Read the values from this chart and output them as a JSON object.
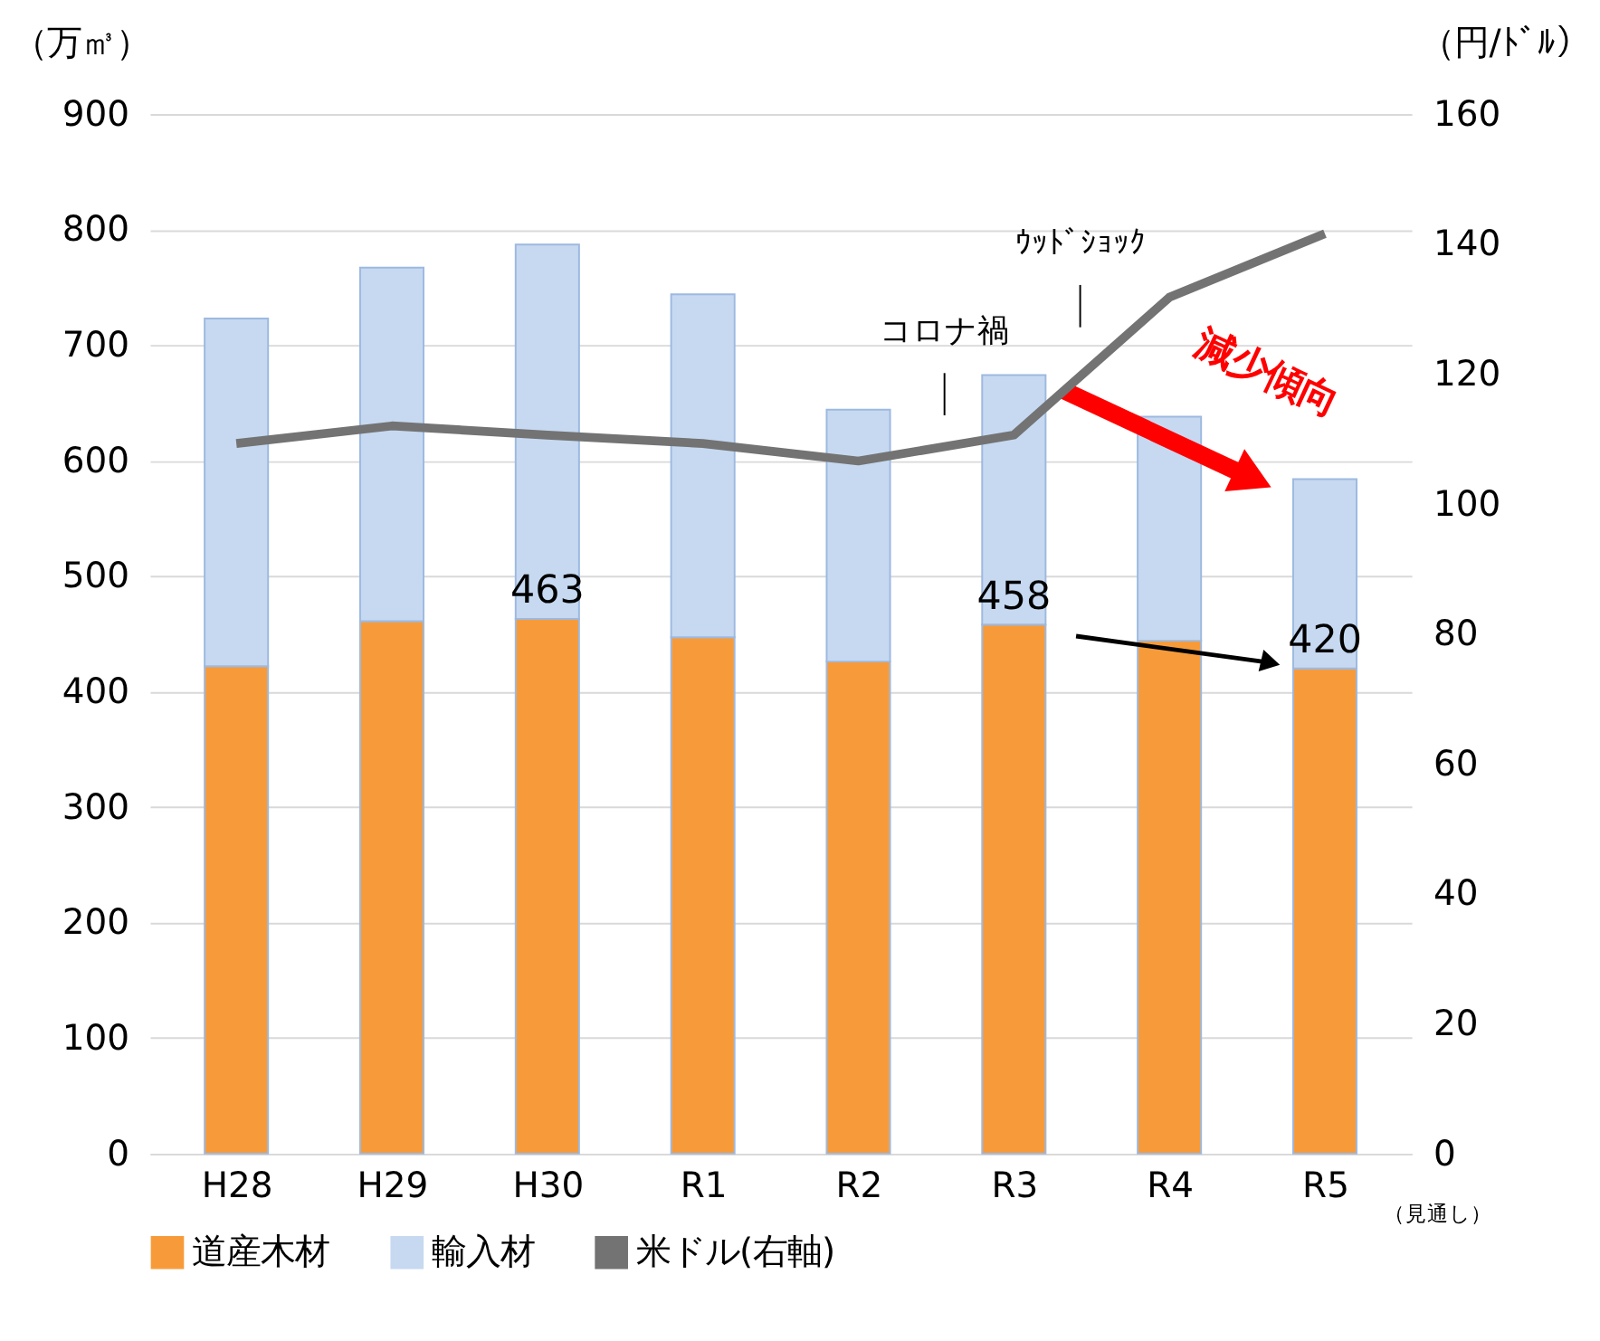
{
  "chart_data": {
    "type": "bar",
    "stacked": true,
    "categories": [
      "H28",
      "H29",
      "H30",
      "R1",
      "R2",
      "R3",
      "R4",
      "R5"
    ],
    "series": [
      {
        "name": "道産木材",
        "color": "#f79b3a",
        "values": [
          422,
          461,
          463,
          447,
          426,
          458,
          444,
          420
        ],
        "value_labels": [
          null,
          null,
          "463",
          null,
          null,
          "458",
          null,
          "420"
        ]
      },
      {
        "name": "輸入材",
        "color": "#c6d9f1",
        "values": [
          301,
          306,
          324,
          297,
          218,
          216,
          194,
          164
        ]
      },
      {
        "name": "米ドル(右軸)",
        "color": "#737373",
        "type": "line",
        "axis": "y2",
        "values": [
          109.3,
          112,
          110.6,
          109.3,
          106.6,
          110.6,
          131.8,
          141.6
        ]
      }
    ],
    "ylabel": "（万㎥）",
    "y2label": "（円/ﾄﾞﾙ）",
    "ylim": [
      0,
      900
    ],
    "yticks": [
      0,
      100,
      200,
      300,
      400,
      500,
      600,
      700,
      800,
      900
    ],
    "y2lim": [
      0,
      160
    ],
    "y2ticks": [
      0,
      20,
      40,
      60,
      80,
      100,
      120,
      140,
      160
    ],
    "grid": "y",
    "legend": "bottom",
    "marker": "none",
    "line_style": "solid",
    "annotations": [
      "コロナ禍",
      "ｳｯﾄﾞｼｮｯｸ",
      "減少傾向",
      "（見通し）"
    ]
  }
}
